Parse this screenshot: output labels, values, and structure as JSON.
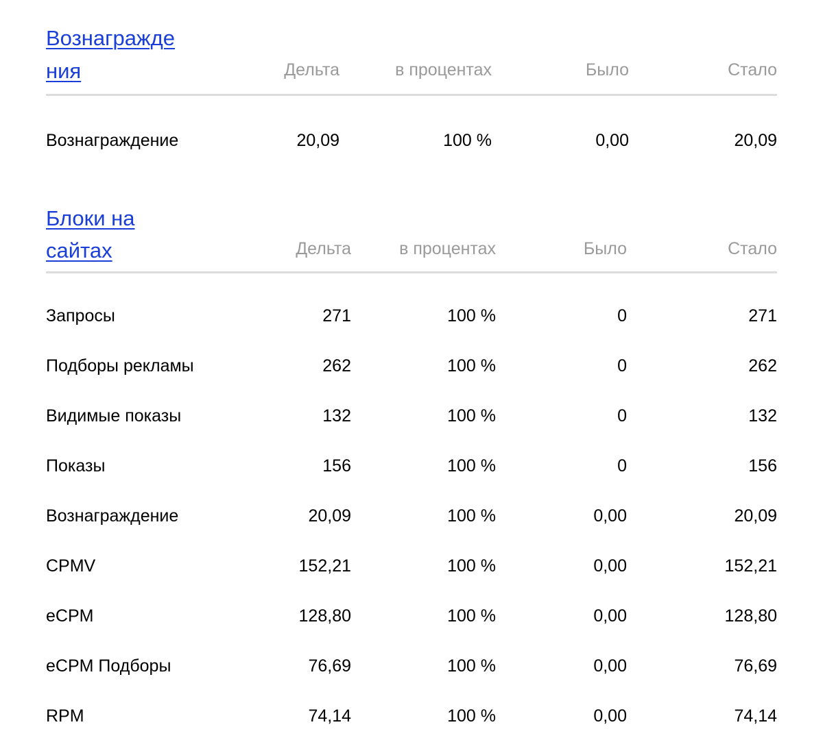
{
  "rewards": {
    "title_line1": "Вознагражде",
    "title_line2": "ния",
    "headers": {
      "delta": "Дельта",
      "percent": "в процентах",
      "was": "Было",
      "became": "Стало"
    },
    "rows": [
      {
        "label": "Вознаграждение",
        "delta": "20,09",
        "percent": "100 %",
        "was": "0,00",
        "became": "20,09"
      }
    ]
  },
  "blocks": {
    "title_line1": "Блоки на",
    "title_line2": "сайтах",
    "headers": {
      "delta": "Дельта",
      "percent": "в процентах",
      "was": "Было",
      "became": "Стало"
    },
    "rows": [
      {
        "label": "Запросы",
        "delta": "271",
        "percent": "100 %",
        "was": "0",
        "became": "271"
      },
      {
        "label": "Подборы рекламы",
        "delta": "262",
        "percent": "100 %",
        "was": "0",
        "became": "262"
      },
      {
        "label": "Видимые показы",
        "delta": "132",
        "percent": "100 %",
        "was": "0",
        "became": "132"
      },
      {
        "label": "Показы",
        "delta": "156",
        "percent": "100 %",
        "was": "0",
        "became": "156"
      },
      {
        "label": "Вознаграждение",
        "delta": "20,09",
        "percent": "100 %",
        "was": "0,00",
        "became": "20,09"
      },
      {
        "label": "CPMV",
        "delta": "152,21",
        "percent": "100 %",
        "was": "0,00",
        "became": "152,21"
      },
      {
        "label": "eCPM",
        "delta": "128,80",
        "percent": "100 %",
        "was": "0,00",
        "became": "128,80"
      },
      {
        "label": "eCPM Подборы",
        "delta": "76,69",
        "percent": "100 %",
        "was": "0,00",
        "became": "76,69"
      },
      {
        "label": "RPM",
        "delta": "74,14",
        "percent": "100 %",
        "was": "0,00",
        "became": "74,14"
      }
    ]
  }
}
